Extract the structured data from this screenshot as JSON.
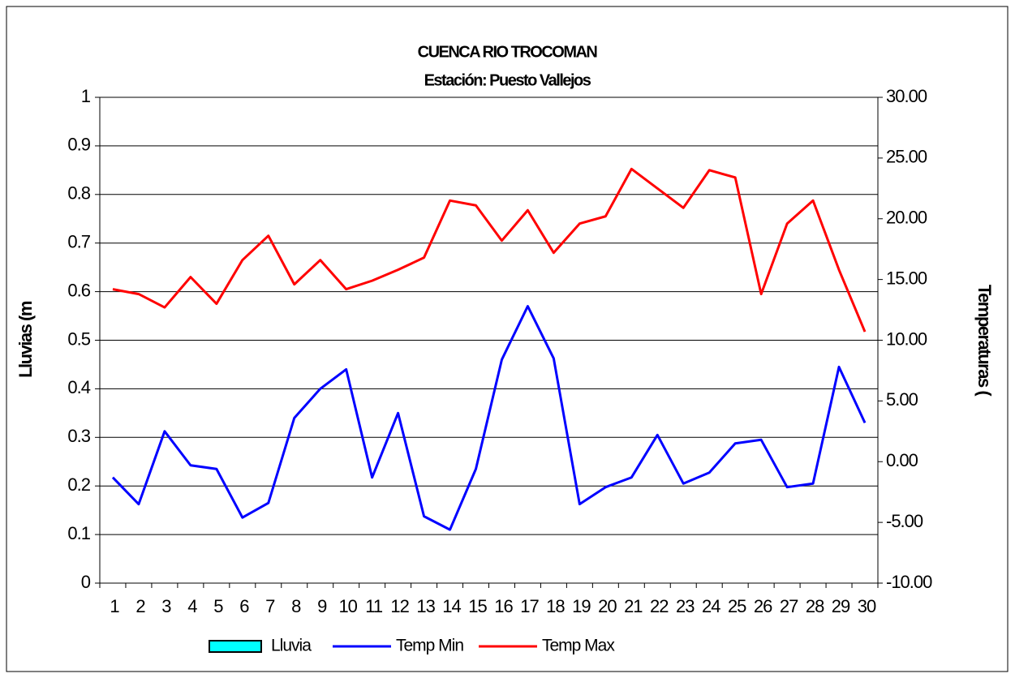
{
  "chart_data": {
    "type": "line",
    "title": "CUENCA RIO TROCOMAN",
    "subtitle": "Estación: Puesto Vallejos",
    "ylabel": "Lluvias (m",
    "y2label": "Temperaturas (",
    "categories": [
      "1",
      "2",
      "3",
      "4",
      "5",
      "6",
      "7",
      "8",
      "9",
      "10",
      "11",
      "12",
      "13",
      "14",
      "15",
      "16",
      "17",
      "18",
      "19",
      "20",
      "21",
      "22",
      "23",
      "24",
      "25",
      "26",
      "27",
      "28",
      "29",
      "30"
    ],
    "series": [
      {
        "name": "Lluvia",
        "type": "bar",
        "color": "#00ffff",
        "values": [
          0,
          0,
          0,
          0,
          0,
          0,
          0,
          0,
          0,
          0,
          0,
          0,
          0,
          0,
          0,
          0,
          0,
          0,
          0,
          0,
          0,
          0,
          0,
          0,
          0,
          0,
          0,
          0,
          0,
          0
        ]
      },
      {
        "name": "Temp Min",
        "type": "line",
        "axis": "y2",
        "color": "#0000ff",
        "values": [
          -1.3,
          -3.5,
          2.5,
          -0.3,
          -0.6,
          -4.6,
          -3.4,
          3.6,
          6.0,
          7.6,
          -1.3,
          4.0,
          -4.5,
          -5.6,
          -0.6,
          8.4,
          12.8,
          8.5,
          -3.5,
          -2.1,
          -1.3,
          2.2,
          -1.8,
          -0.9,
          1.5,
          1.8,
          -2.1,
          -1.8,
          7.8,
          3.2
        ]
      },
      {
        "name": "Temp Max",
        "type": "line",
        "axis": "y2",
        "color": "#ff0000",
        "values": [
          14.2,
          13.8,
          12.7,
          15.2,
          13.0,
          16.6,
          18.6,
          14.6,
          16.6,
          14.2,
          14.9,
          15.8,
          16.8,
          21.5,
          21.1,
          18.2,
          20.7,
          17.2,
          19.6,
          20.2,
          24.1,
          22.5,
          20.9,
          24.0,
          23.4,
          13.8,
          19.6,
          21.5,
          15.8,
          10.7
        ]
      }
    ],
    "ylim": [
      0,
      1
    ],
    "yticks": [
      0,
      0.1,
      0.2,
      0.3,
      0.4,
      0.5,
      0.6,
      0.7,
      0.8,
      0.9,
      1
    ],
    "y2lim": [
      -10,
      30
    ],
    "y2ticks": [
      {
        "value": -10,
        "label": "-10.00"
      },
      {
        "value": -5,
        "label": "-5.00"
      },
      {
        "value": 0,
        "label": "0.00"
      },
      {
        "value": 5,
        "label": "5.00"
      },
      {
        "value": 10,
        "label": "10.00"
      },
      {
        "value": 15,
        "label": "15.00"
      },
      {
        "value": 20,
        "label": "20.00"
      },
      {
        "value": 25,
        "label": "25.00"
      },
      {
        "value": 30,
        "label": "30.00"
      }
    ],
    "grid": true,
    "legend": "bottom"
  }
}
